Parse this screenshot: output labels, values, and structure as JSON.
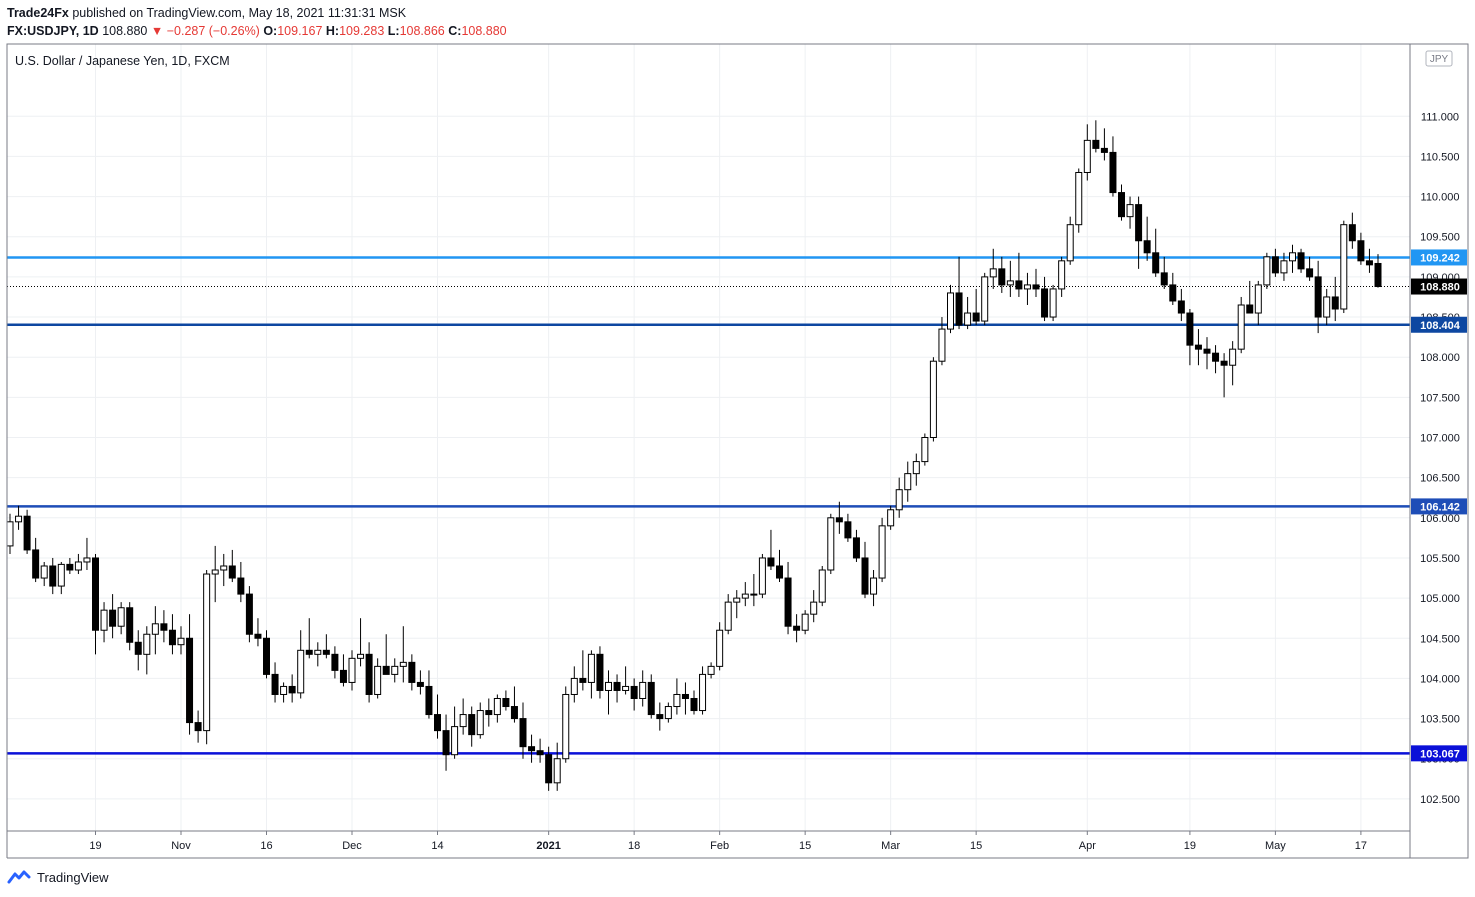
{
  "header": {
    "publisher": "Trade24Fx",
    "published_text": "published on TradingView.com, May 18, 2021 11:31:31 MSK",
    "symbol": "FX:USDJPY, 1D",
    "last": "108.880",
    "change": "−0.287 (−0.26%)",
    "o_label": "O:",
    "o_value": "109.167",
    "h_label": "H:",
    "h_value": "109.283",
    "l_label": "L:",
    "l_value": "108.866",
    "c_label": "C:",
    "c_value": "108.880"
  },
  "footer": {
    "brand": "TradingView"
  },
  "colors": {
    "bull_fill": "#ffffff",
    "bear_fill": "#000000",
    "outline": "#000000",
    "line_top": "#2196f3",
    "line_mid": "#0d47a1",
    "line_low": "#1e4db7",
    "line_bottom": "#0a10d8",
    "current_price_label": "#000000",
    "grid": "#eef0f3"
  },
  "chart_data": {
    "type": "candlestick",
    "title": "U.S. Dollar / Japanese Yen, 1D, FXCM",
    "currency_badge": "JPY",
    "y_scale": "linear",
    "ylim": [
      102.1,
      111.9
    ],
    "y_ticks": [
      "102.500",
      "103.000",
      "103.500",
      "104.000",
      "104.500",
      "105.000",
      "105.500",
      "106.000",
      "106.500",
      "107.000",
      "107.500",
      "108.000",
      "108.500",
      "109.000",
      "109.500",
      "110.000",
      "110.500",
      "111.000"
    ],
    "x_labels": [
      {
        "i": 10,
        "label": "19",
        "bold": false
      },
      {
        "i": 20,
        "label": "Nov",
        "bold": false
      },
      {
        "i": 30,
        "label": "16",
        "bold": false
      },
      {
        "i": 40,
        "label": "Dec",
        "bold": false
      },
      {
        "i": 50,
        "label": "14",
        "bold": false
      },
      {
        "i": 63,
        "label": "2021",
        "bold": true
      },
      {
        "i": 73,
        "label": "18",
        "bold": false
      },
      {
        "i": 83,
        "label": "Feb",
        "bold": false
      },
      {
        "i": 93,
        "label": "15",
        "bold": false
      },
      {
        "i": 103,
        "label": "Mar",
        "bold": false
      },
      {
        "i": 113,
        "label": "15",
        "bold": false
      },
      {
        "i": 126,
        "label": "Apr",
        "bold": false
      },
      {
        "i": 138,
        "label": "19",
        "bold": false
      },
      {
        "i": 148,
        "label": "May",
        "bold": false
      },
      {
        "i": 158,
        "label": "17",
        "bold": false
      }
    ],
    "horizontal_lines": [
      {
        "value": 109.242,
        "label": "109.242",
        "color": "#2196f3"
      },
      {
        "value": 108.404,
        "label": "108.404",
        "color": "#0d47a1"
      },
      {
        "value": 106.142,
        "label": "106.142",
        "color": "#1e4db7"
      },
      {
        "value": 103.067,
        "label": "103.067",
        "color": "#0a10d8"
      }
    ],
    "current_price": {
      "value": 108.88,
      "label": "108.880"
    },
    "ohlc": [
      [
        105.65,
        106.05,
        105.55,
        105.95
      ],
      [
        105.95,
        106.15,
        105.85,
        106.02
      ],
      [
        106.02,
        106.1,
        105.55,
        105.6
      ],
      [
        105.6,
        105.75,
        105.2,
        105.25
      ],
      [
        105.25,
        105.45,
        105.15,
        105.4
      ],
      [
        105.4,
        105.5,
        105.05,
        105.15
      ],
      [
        105.15,
        105.45,
        105.05,
        105.42
      ],
      [
        105.42,
        105.5,
        105.3,
        105.35
      ],
      [
        105.35,
        105.55,
        105.3,
        105.45
      ],
      [
        105.45,
        105.75,
        105.35,
        105.5
      ],
      [
        105.5,
        105.55,
        104.3,
        104.6
      ],
      [
        104.6,
        104.95,
        104.45,
        104.85
      ],
      [
        104.85,
        105.05,
        104.5,
        104.65
      ],
      [
        104.65,
        104.95,
        104.55,
        104.88
      ],
      [
        104.88,
        104.95,
        104.35,
        104.45
      ],
      [
        104.45,
        104.6,
        104.1,
        104.3
      ],
      [
        104.3,
        104.65,
        104.05,
        104.55
      ],
      [
        104.55,
        104.9,
        104.3,
        104.68
      ],
      [
        104.68,
        104.85,
        104.45,
        104.6
      ],
      [
        104.6,
        104.8,
        104.3,
        104.42
      ],
      [
        104.42,
        104.65,
        104.3,
        104.5
      ],
      [
        104.5,
        104.8,
        103.3,
        103.45
      ],
      [
        103.45,
        103.6,
        103.2,
        103.35
      ],
      [
        103.35,
        105.35,
        103.18,
        105.3
      ],
      [
        105.3,
        105.65,
        104.95,
        105.35
      ],
      [
        105.35,
        105.55,
        105.15,
        105.4
      ],
      [
        105.4,
        105.6,
        105.2,
        105.25
      ],
      [
        105.25,
        105.45,
        104.95,
        105.05
      ],
      [
        105.05,
        105.15,
        104.45,
        104.55
      ],
      [
        104.55,
        104.75,
        104.4,
        104.5
      ],
      [
        104.5,
        104.6,
        104.0,
        104.05
      ],
      [
        104.05,
        104.2,
        103.7,
        103.8
      ],
      [
        103.8,
        103.95,
        103.7,
        103.9
      ],
      [
        103.9,
        104.05,
        103.7,
        103.82
      ],
      [
        103.82,
        104.6,
        103.75,
        104.35
      ],
      [
        104.35,
        104.75,
        104.25,
        104.3
      ],
      [
        104.3,
        104.45,
        104.15,
        104.35
      ],
      [
        104.35,
        104.55,
        104.25,
        104.3
      ],
      [
        104.3,
        104.4,
        104.0,
        104.1
      ],
      [
        104.1,
        104.3,
        103.9,
        103.95
      ],
      [
        103.95,
        104.35,
        103.85,
        104.25
      ],
      [
        104.25,
        104.75,
        104.15,
        104.3
      ],
      [
        104.3,
        104.45,
        103.7,
        103.8
      ],
      [
        103.8,
        104.25,
        103.75,
        104.15
      ],
      [
        104.15,
        104.55,
        104.05,
        104.05
      ],
      [
        104.05,
        104.25,
        103.95,
        104.15
      ],
      [
        104.15,
        104.65,
        103.95,
        104.2
      ],
      [
        104.2,
        104.3,
        103.85,
        103.95
      ],
      [
        103.95,
        104.1,
        103.8,
        103.9
      ],
      [
        103.9,
        104.1,
        103.5,
        103.55
      ],
      [
        103.55,
        103.8,
        103.25,
        103.35
      ],
      [
        103.35,
        103.55,
        102.85,
        103.05
      ],
      [
        103.05,
        103.65,
        103.0,
        103.4
      ],
      [
        103.4,
        103.75,
        103.3,
        103.55
      ],
      [
        103.55,
        103.65,
        103.15,
        103.3
      ],
      [
        103.3,
        103.7,
        103.25,
        103.6
      ],
      [
        103.6,
        103.75,
        103.4,
        103.55
      ],
      [
        103.55,
        103.8,
        103.45,
        103.75
      ],
      [
        103.75,
        103.85,
        103.6,
        103.65
      ],
      [
        103.65,
        103.9,
        103.45,
        103.5
      ],
      [
        103.5,
        103.7,
        103.0,
        103.15
      ],
      [
        103.15,
        103.3,
        102.95,
        103.1
      ],
      [
        103.1,
        103.25,
        102.95,
        103.05
      ],
      [
        103.05,
        103.15,
        102.6,
        102.7
      ],
      [
        102.7,
        103.2,
        102.6,
        103.0
      ],
      [
        103.0,
        103.9,
        102.95,
        103.8
      ],
      [
        103.8,
        104.15,
        103.7,
        104.0
      ],
      [
        104.0,
        104.35,
        103.85,
        103.95
      ],
      [
        103.95,
        104.35,
        103.75,
        104.3
      ],
      [
        104.3,
        104.4,
        103.75,
        103.85
      ],
      [
        103.85,
        104.1,
        103.55,
        103.95
      ],
      [
        103.95,
        104.05,
        103.7,
        103.85
      ],
      [
        103.85,
        104.15,
        103.8,
        103.9
      ],
      [
        103.9,
        104.0,
        103.6,
        103.75
      ],
      [
        103.75,
        104.1,
        103.65,
        103.95
      ],
      [
        103.95,
        104.05,
        103.5,
        103.55
      ],
      [
        103.55,
        103.7,
        103.35,
        103.5
      ],
      [
        103.5,
        103.7,
        103.45,
        103.65
      ],
      [
        103.65,
        104.0,
        103.55,
        103.8
      ],
      [
        103.8,
        103.95,
        103.55,
        103.75
      ],
      [
        103.75,
        103.85,
        103.55,
        103.6
      ],
      [
        103.6,
        104.15,
        103.55,
        104.05
      ],
      [
        104.05,
        104.2,
        104.0,
        104.15
      ],
      [
        104.15,
        104.7,
        104.1,
        104.6
      ],
      [
        104.6,
        105.05,
        104.55,
        104.95
      ],
      [
        104.95,
        105.1,
        104.75,
        105.0
      ],
      [
        105.0,
        105.2,
        104.9,
        105.05
      ],
      [
        105.05,
        105.3,
        104.9,
        105.05
      ],
      [
        105.05,
        105.55,
        105.0,
        105.5
      ],
      [
        105.5,
        105.85,
        105.35,
        105.4
      ],
      [
        105.4,
        105.6,
        105.2,
        105.25
      ],
      [
        105.25,
        105.45,
        104.55,
        104.65
      ],
      [
        104.65,
        104.8,
        104.45,
        104.6
      ],
      [
        104.6,
        104.85,
        104.55,
        104.8
      ],
      [
        104.8,
        105.1,
        104.7,
        104.95
      ],
      [
        104.95,
        105.4,
        104.9,
        105.35
      ],
      [
        105.35,
        106.05,
        105.3,
        106.0
      ],
      [
        106.0,
        106.2,
        105.8,
        105.95
      ],
      [
        105.95,
        106.05,
        105.7,
        105.75
      ],
      [
        105.75,
        105.85,
        105.45,
        105.5
      ],
      [
        105.5,
        105.7,
        105.0,
        105.05
      ],
      [
        105.05,
        105.35,
        104.9,
        105.25
      ],
      [
        105.25,
        106.0,
        105.2,
        105.9
      ],
      [
        105.9,
        106.15,
        105.85,
        106.1
      ],
      [
        106.1,
        106.5,
        106.0,
        106.35
      ],
      [
        106.35,
        106.7,
        106.2,
        106.55
      ],
      [
        106.55,
        106.8,
        106.4,
        106.7
      ],
      [
        106.7,
        107.05,
        106.65,
        107.0
      ],
      [
        107.0,
        108.0,
        106.95,
        107.95
      ],
      [
        107.95,
        108.5,
        107.9,
        108.35
      ],
      [
        108.35,
        108.9,
        108.3,
        108.8
      ],
      [
        108.8,
        109.25,
        108.35,
        108.4
      ],
      [
        108.4,
        108.75,
        108.35,
        108.55
      ],
      [
        108.55,
        108.85,
        108.4,
        108.45
      ],
      [
        108.45,
        109.05,
        108.4,
        109.0
      ],
      [
        109.0,
        109.35,
        108.85,
        109.1
      ],
      [
        109.1,
        109.25,
        108.8,
        108.9
      ],
      [
        108.9,
        109.2,
        108.75,
        108.95
      ],
      [
        108.95,
        109.3,
        108.75,
        108.85
      ],
      [
        108.85,
        109.05,
        108.65,
        108.9
      ],
      [
        108.9,
        109.1,
        108.75,
        108.85
      ],
      [
        108.85,
        109.0,
        108.45,
        108.5
      ],
      [
        108.5,
        108.9,
        108.45,
        108.85
      ],
      [
        108.85,
        109.25,
        108.75,
        109.2
      ],
      [
        109.2,
        109.75,
        109.15,
        109.65
      ],
      [
        109.65,
        110.35,
        109.55,
        110.3
      ],
      [
        110.3,
        110.9,
        110.2,
        110.7
      ],
      [
        110.7,
        110.95,
        110.55,
        110.6
      ],
      [
        110.6,
        110.85,
        110.45,
        110.55
      ],
      [
        110.55,
        110.75,
        110.0,
        110.05
      ],
      [
        110.05,
        110.15,
        109.7,
        109.75
      ],
      [
        109.75,
        110.0,
        109.6,
        109.9
      ],
      [
        109.9,
        110.0,
        109.1,
        109.45
      ],
      [
        109.45,
        109.75,
        109.2,
        109.3
      ],
      [
        109.3,
        109.6,
        109.0,
        109.05
      ],
      [
        109.05,
        109.25,
        108.85,
        108.9
      ],
      [
        108.9,
        109.05,
        108.65,
        108.7
      ],
      [
        108.7,
        108.85,
        108.45,
        108.55
      ],
      [
        108.55,
        108.6,
        107.9,
        108.15
      ],
      [
        108.15,
        108.35,
        107.9,
        108.1
      ],
      [
        108.1,
        108.25,
        107.85,
        108.05
      ],
      [
        108.05,
        108.15,
        107.8,
        107.95
      ],
      [
        107.95,
        108.05,
        107.5,
        107.9
      ],
      [
        107.9,
        108.2,
        107.65,
        108.1
      ],
      [
        108.1,
        108.75,
        108.05,
        108.65
      ],
      [
        108.65,
        108.95,
        108.55,
        108.55
      ],
      [
        108.55,
        108.95,
        108.4,
        108.9
      ],
      [
        108.9,
        109.3,
        108.85,
        109.25
      ],
      [
        109.25,
        109.35,
        109.0,
        109.05
      ],
      [
        109.05,
        109.3,
        108.95,
        109.2
      ],
      [
        109.2,
        109.4,
        109.05,
        109.3
      ],
      [
        109.3,
        109.35,
        109.05,
        109.1
      ],
      [
        109.1,
        109.25,
        108.95,
        109.0
      ],
      [
        109.0,
        109.2,
        108.3,
        108.5
      ],
      [
        108.5,
        108.85,
        108.4,
        108.75
      ],
      [
        108.75,
        109.0,
        108.45,
        108.6
      ],
      [
        108.6,
        109.7,
        108.55,
        109.65
      ],
      [
        109.65,
        109.8,
        109.35,
        109.45
      ],
      [
        109.45,
        109.55,
        109.15,
        109.2
      ],
      [
        109.2,
        109.35,
        109.05,
        109.15
      ],
      [
        109.167,
        109.283,
        108.866,
        108.88
      ]
    ]
  }
}
